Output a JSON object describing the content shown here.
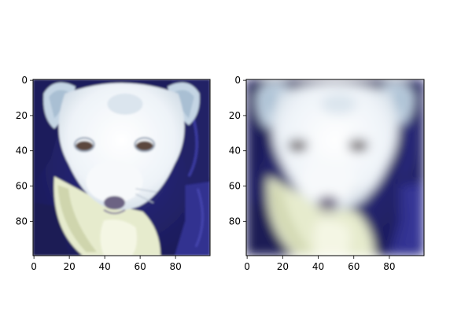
{
  "chart_data": [
    {
      "type": "image",
      "title": "",
      "subject": "white puppy wrapped in a dark blue blanket",
      "variant": "original",
      "xlim": [
        0,
        99
      ],
      "ylim": [
        99,
        0
      ],
      "xticks": [
        0,
        20,
        40,
        60,
        80
      ],
      "yticks": [
        0,
        20,
        40,
        60,
        80
      ],
      "xlabel": "",
      "ylabel": ""
    },
    {
      "type": "image",
      "title": "",
      "subject": "white puppy wrapped in a dark blue blanket",
      "variant": "smoothed / blurred",
      "xlim": [
        0,
        99
      ],
      "ylim": [
        99,
        0
      ],
      "xticks": [
        0,
        20,
        40,
        60,
        80
      ],
      "yticks": [
        0,
        20,
        40,
        60,
        80
      ],
      "xlabel": "",
      "ylabel": ""
    }
  ],
  "colors": {
    "blanket": "#23236e",
    "blanket_dark": "#10103f",
    "fur": "#f2f6fb",
    "fur_shadow": "#d9e2ea",
    "ear": "#b8cad9",
    "nose": "#6c6483",
    "eye": "#5b463e",
    "spine": "#000000"
  }
}
